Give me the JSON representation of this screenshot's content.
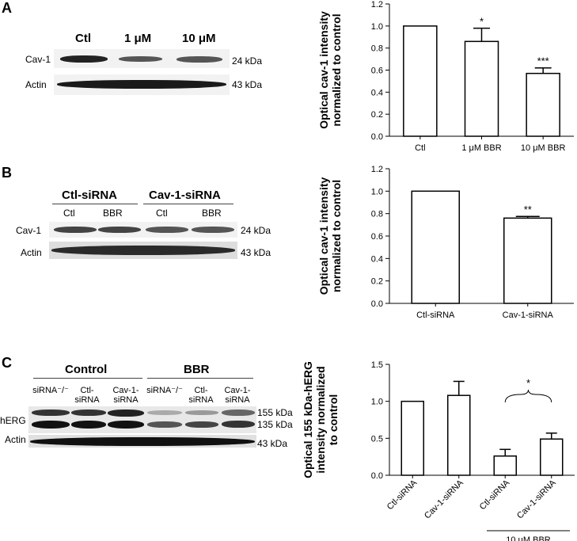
{
  "panels": {
    "A": {
      "letter": "A",
      "lane_labels": [
        "Ctl",
        "1 μM",
        "10 μM"
      ],
      "row_labels": [
        "Cav-1",
        "Actin"
      ],
      "kda_labels": [
        "24 kDa",
        "43 kDa"
      ]
    },
    "B": {
      "letter": "B",
      "group_labels": [
        "Ctl-siRNA",
        "Cav-1-siRNA"
      ],
      "lane_labels": [
        "Ctl",
        "BBR",
        "Ctl",
        "BBR"
      ],
      "row_labels": [
        "Cav-1",
        "Actin"
      ],
      "kda_labels": [
        "24 kDa",
        "43 kDa"
      ]
    },
    "C": {
      "letter": "C",
      "group_labels": [
        "Control",
        "BBR"
      ],
      "lane_labels": [
        "siRNA⁻/⁻",
        "Ctl-\nsiRNA",
        "Cav-1-\nsiRNA",
        "siRNA⁻/⁻",
        "Ctl-\nsiRNA",
        "Cav-1-\nsiRNA"
      ],
      "row_labels": [
        "hERG",
        "Actin"
      ],
      "kda_labels": [
        "155 kDa",
        "135 kDa",
        "43 kDa"
      ]
    }
  },
  "chart_data": [
    {
      "type": "bar",
      "categories": [
        "Ctl",
        "1 μM BBR",
        "10 μM BBR"
      ],
      "values": [
        1.0,
        0.86,
        0.57
      ],
      "errors": [
        0.0,
        0.12,
        0.05
      ],
      "significance": [
        "",
        "*",
        "***"
      ],
      "ylabel": "Optical cav-1 intensity\nnormalized to control",
      "ylim": [
        0,
        1.2
      ],
      "yticks": [
        "0.0",
        "0.2",
        "0.4",
        "0.6",
        "0.8",
        "1.0",
        "1.2"
      ]
    },
    {
      "type": "bar",
      "categories": [
        "Ctl-siRNA",
        "Cav-1-siRNA"
      ],
      "values": [
        1.0,
        0.76
      ],
      "errors": [
        0.0,
        0.015
      ],
      "significance": [
        "",
        "**"
      ],
      "ylabel": "Optical cav-1 intensity\nnormalized to control",
      "ylim": [
        0,
        1.2
      ],
      "yticks": [
        "0.0",
        "0.2",
        "0.4",
        "0.6",
        "0.8",
        "1.0",
        "1.2"
      ]
    },
    {
      "type": "bar",
      "categories": [
        "Ctl-siRNA",
        "Cav-1-siRNA",
        "Ctl-siRNA",
        "Cav-1-siRNA"
      ],
      "values": [
        1.0,
        1.08,
        0.26,
        0.49
      ],
      "errors": [
        0.0,
        0.19,
        0.09,
        0.08
      ],
      "significance": [
        "",
        "",
        "",
        ""
      ],
      "comparison": {
        "from": 2,
        "to": 3,
        "label": "*"
      },
      "group_label": {
        "from": 2,
        "to": 3,
        "text": "10 μM BBR"
      },
      "ylabel": "Optical 155 kDa-hERG\nintensity normalized\nto control",
      "ylim": [
        0,
        1.5
      ],
      "yticks": [
        "0.0",
        "0.5",
        "1.0",
        "1.5"
      ]
    }
  ]
}
